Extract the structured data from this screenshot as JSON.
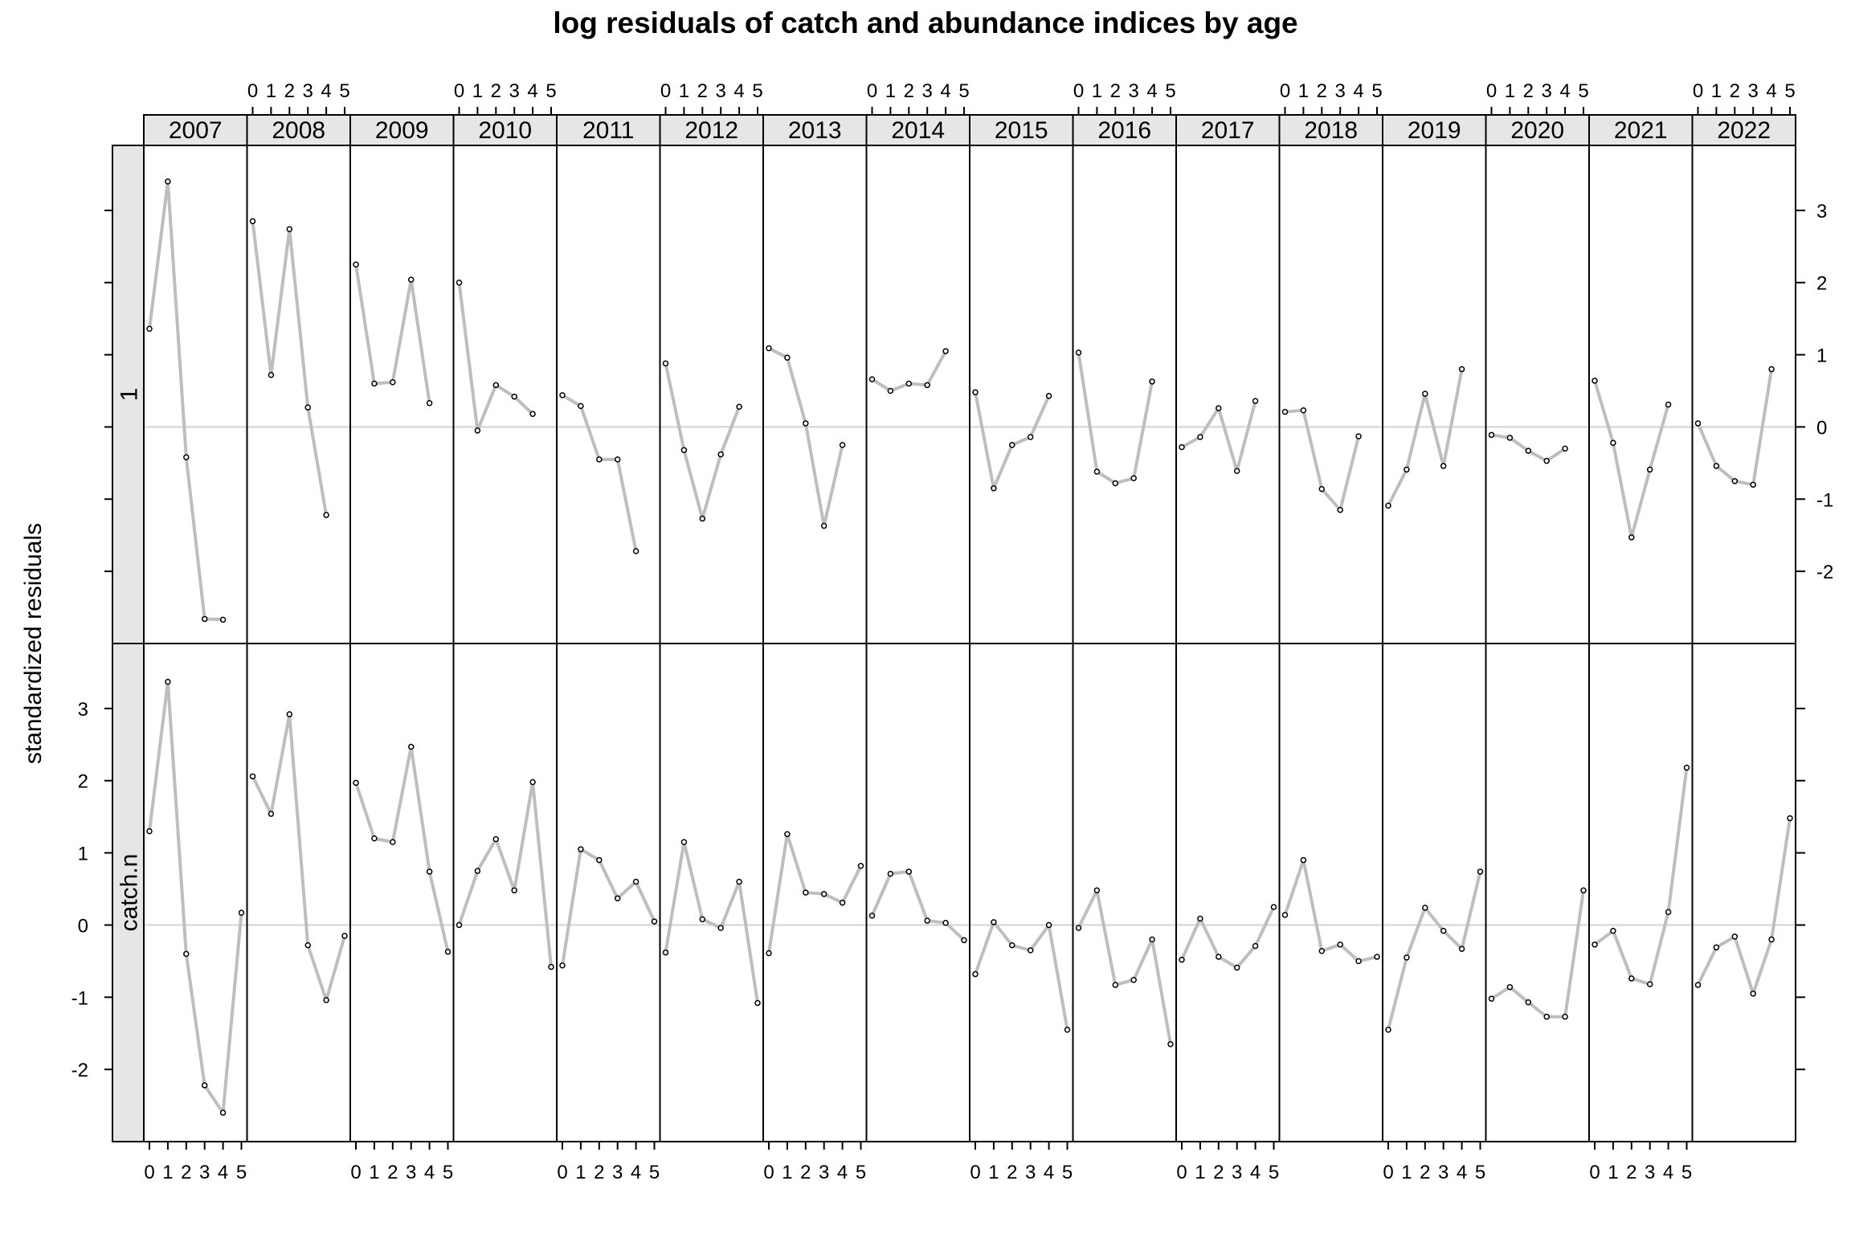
{
  "chart_data": {
    "type": "line",
    "title": "log residuals of catch and abundance indices by age",
    "ylabel": "standardized residuals",
    "xlabel": "",
    "ylim": [
      -3,
      3.9
    ],
    "grid": false,
    "x": [
      "0",
      "1",
      "2",
      "3",
      "4",
      "5"
    ],
    "x_tick_labels": [
      "0",
      "1",
      "2",
      "3",
      "4",
      "5"
    ],
    "y_ticks": [
      -2,
      -1,
      0,
      1,
      2,
      3
    ],
    "y_tick_labels": [
      "-2",
      "-1",
      "0",
      "1",
      "2",
      "3"
    ],
    "years": [
      "2007",
      "2008",
      "2009",
      "2010",
      "2011",
      "2012",
      "2013",
      "2014",
      "2015",
      "2016",
      "2017",
      "2018",
      "2019",
      "2020",
      "2021",
      "2022"
    ],
    "rows": [
      {
        "strip_label": "1",
        "values": [
          [
            1.36,
            3.4,
            -0.42,
            -2.66,
            -2.67
          ],
          [
            2.85,
            0.72,
            2.74,
            0.27,
            -1.22
          ],
          [
            2.25,
            0.6,
            0.62,
            2.04,
            0.33
          ],
          [
            2.0,
            -0.05,
            0.58,
            0.42,
            0.18
          ],
          [
            0.44,
            0.29,
            -0.45,
            -0.45,
            -1.72
          ],
          [
            0.88,
            -0.32,
            -1.27,
            -0.38,
            0.28
          ],
          [
            1.09,
            0.96,
            0.05,
            -1.37,
            -0.25
          ],
          [
            0.66,
            0.5,
            0.6,
            0.58,
            1.05
          ],
          [
            0.48,
            -0.85,
            -0.25,
            -0.14,
            0.43
          ],
          [
            1.03,
            -0.62,
            -0.78,
            -0.71,
            0.63
          ],
          [
            -0.28,
            -0.14,
            0.26,
            -0.61,
            0.36
          ],
          [
            0.21,
            0.23,
            -0.86,
            -1.15,
            -0.13
          ],
          [
            -1.09,
            -0.59,
            0.46,
            -0.54,
            0.8
          ],
          [
            -0.11,
            -0.15,
            -0.33,
            -0.47,
            -0.3
          ],
          [
            0.64,
            -0.22,
            -1.53,
            -0.59,
            0.31
          ],
          [
            0.05,
            -0.54,
            -0.75,
            -0.8,
            0.8
          ]
        ]
      },
      {
        "strip_label": "catch.n",
        "values": [
          [
            1.3,
            3.37,
            -0.4,
            -2.22,
            -2.6,
            0.17
          ],
          [
            2.06,
            1.54,
            2.92,
            -0.28,
            -1.04,
            -0.15
          ],
          [
            1.97,
            1.2,
            1.15,
            2.47,
            0.74,
            -0.37
          ],
          [
            0.0,
            0.75,
            1.19,
            0.48,
            1.98,
            -0.58
          ],
          [
            -0.56,
            1.05,
            0.9,
            0.37,
            0.6,
            0.05
          ],
          [
            -0.38,
            1.15,
            0.08,
            -0.04,
            0.6,
            -1.08
          ],
          [
            -0.39,
            1.26,
            0.45,
            0.43,
            0.31,
            0.82
          ],
          [
            0.13,
            0.71,
            0.74,
            0.06,
            0.03,
            -0.21
          ],
          [
            -0.68,
            0.04,
            -0.28,
            -0.35,
            0.0,
            -1.45
          ],
          [
            -0.04,
            0.48,
            -0.83,
            -0.76,
            -0.2,
            -1.65
          ],
          [
            -0.48,
            0.09,
            -0.44,
            -0.59,
            -0.29,
            0.25
          ],
          [
            0.14,
            0.9,
            -0.36,
            -0.27,
            -0.5,
            -0.44
          ],
          [
            -1.45,
            -0.45,
            0.24,
            -0.08,
            -0.33,
            0.74
          ],
          [
            -1.02,
            -0.86,
            -1.07,
            -1.27,
            -1.27,
            0.48
          ],
          [
            -0.27,
            -0.08,
            -0.74,
            -0.82,
            0.18,
            2.18
          ],
          [
            -0.83,
            -0.31,
            -0.16,
            -0.95,
            -0.2,
            1.48
          ]
        ]
      }
    ]
  }
}
